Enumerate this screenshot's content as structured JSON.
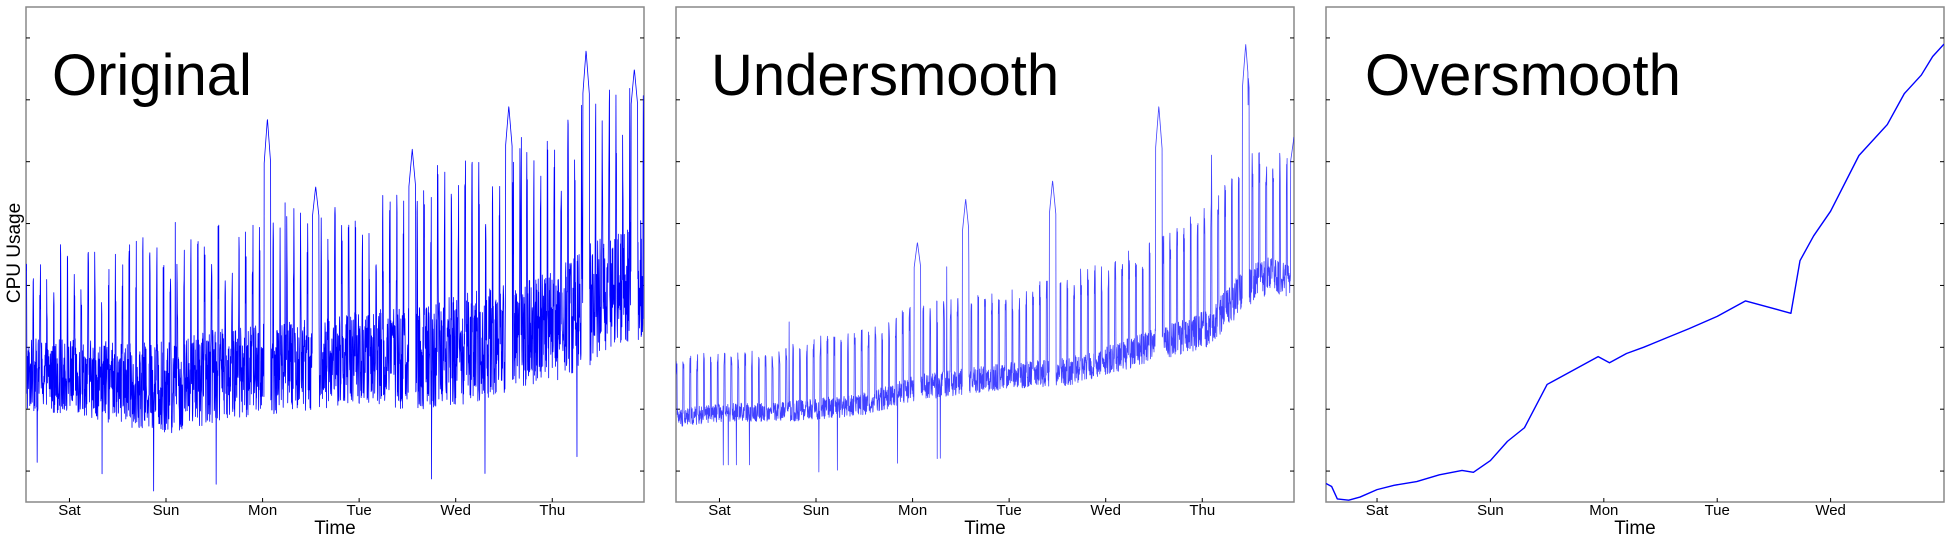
{
  "colors": {
    "series": "#0000ff",
    "frame": "#888888",
    "background": "#ffffff"
  },
  "figure": {
    "ylabel": "CPU Usage",
    "xlabel": "Time"
  },
  "chart_data": [
    {
      "type": "line",
      "title": "Original",
      "xlabel": "Time",
      "ylabel": "CPU Usage",
      "x_tick_labels": [
        "Sat",
        "Sun",
        "Mon",
        "Tue",
        "Wed",
        "Thu"
      ],
      "x_range_days": [
        0,
        6.4
      ],
      "x_ticks_days": [
        0.45,
        1.45,
        2.45,
        3.45,
        4.45,
        5.45
      ],
      "y_ticks": [
        0.05,
        0.15,
        0.25,
        0.35,
        0.45,
        0.55,
        0.65,
        0.75
      ],
      "ylim": [
        0,
        0.8
      ],
      "grid": false,
      "style": "noisy-periodic",
      "series": [
        {
          "x": [
            0,
            0.5,
            1.0,
            1.5,
            2.0,
            2.5,
            3.0,
            3.5,
            4.0,
            4.5,
            5.0,
            5.5,
            5.8,
            6.0,
            6.4
          ],
          "center": [
            0.24,
            0.24,
            0.23,
            0.23,
            0.25,
            0.26,
            0.27,
            0.28,
            0.28,
            0.3,
            0.32,
            0.34,
            0.38,
            0.4,
            0.42
          ],
          "amplitude": [
            0.08,
            0.08,
            0.09,
            0.1,
            0.1,
            0.1,
            0.1,
            0.1,
            0.11,
            0.12,
            0.12,
            0.12,
            0.14,
            0.13,
            0.13
          ],
          "spikes": [
            [
              2.5,
              0.62
            ],
            [
              3.0,
              0.51
            ],
            [
              4.0,
              0.57
            ],
            [
              5.0,
              0.64
            ],
            [
              5.8,
              0.73
            ],
            [
              6.3,
              0.7
            ]
          ]
        }
      ]
    },
    {
      "type": "line",
      "title": "Undersmooth",
      "xlabel": "Time",
      "ylabel": "",
      "x_tick_labels": [
        "Sat",
        "Sun",
        "Mon",
        "Tue",
        "Wed",
        "Thu"
      ],
      "x_range_days": [
        0,
        6.4
      ],
      "x_ticks_days": [
        0.45,
        1.45,
        2.45,
        3.45,
        4.45,
        5.45
      ],
      "y_ticks": [
        0.05,
        0.15,
        0.25,
        0.35,
        0.45,
        0.55,
        0.65,
        0.75
      ],
      "ylim": [
        0,
        0.8
      ],
      "grid": false,
      "style": "smoothed-periodic",
      "series": [
        {
          "x": [
            0,
            0.5,
            1.0,
            1.5,
            2.0,
            2.5,
            3.0,
            3.5,
            4.0,
            4.5,
            5.0,
            5.5,
            5.9,
            6.2,
            6.4
          ],
          "center": [
            0.16,
            0.17,
            0.17,
            0.18,
            0.19,
            0.22,
            0.23,
            0.24,
            0.25,
            0.27,
            0.3,
            0.33,
            0.4,
            0.42,
            0.4
          ],
          "amplitude": [
            0.05,
            0.05,
            0.05,
            0.06,
            0.06,
            0.07,
            0.07,
            0.07,
            0.08,
            0.08,
            0.09,
            0.1,
            0.11,
            0.1,
            0.1
          ],
          "spikes": [
            [
              2.5,
              0.42
            ],
            [
              3.0,
              0.49
            ],
            [
              3.9,
              0.52
            ],
            [
              5.0,
              0.64
            ],
            [
              5.9,
              0.74
            ],
            [
              6.4,
              0.59
            ]
          ]
        }
      ]
    },
    {
      "type": "line",
      "title": "Oversmooth",
      "xlabel": "Time",
      "ylabel": "",
      "x_tick_labels": [
        "Sat",
        "Sun",
        "Mon",
        "Tue",
        "Wed"
      ],
      "x_range_days": [
        0,
        5.45
      ],
      "x_ticks_days": [
        0.45,
        1.45,
        2.45,
        3.45,
        4.45
      ],
      "y_ticks": [
        0.05,
        0.15,
        0.25,
        0.35,
        0.45,
        0.55,
        0.65,
        0.75
      ],
      "ylim": [
        0,
        0.8
      ],
      "grid": false,
      "style": "smooth",
      "series": [
        {
          "x": [
            0,
            0.05,
            0.1,
            0.2,
            0.3,
            0.45,
            0.6,
            0.8,
            1.0,
            1.2,
            1.3,
            1.45,
            1.6,
            1.75,
            1.95,
            2.0,
            2.2,
            2.4,
            2.5,
            2.65,
            2.8,
            3.0,
            3.2,
            3.45,
            3.7,
            4.0,
            4.1,
            4.18,
            4.3,
            4.45,
            4.7,
            4.95,
            5.1,
            5.25,
            5.35,
            5.45
          ],
          "y": [
            0.03,
            0.025,
            0.005,
            0.003,
            0.008,
            0.02,
            0.027,
            0.033,
            0.044,
            0.051,
            0.048,
            0.067,
            0.098,
            0.12,
            0.19,
            0.195,
            0.215,
            0.235,
            0.225,
            0.24,
            0.25,
            0.265,
            0.28,
            0.3,
            0.325,
            0.31,
            0.305,
            0.39,
            0.43,
            0.47,
            0.56,
            0.61,
            0.66,
            0.69,
            0.72,
            0.74
          ]
        }
      ]
    }
  ]
}
